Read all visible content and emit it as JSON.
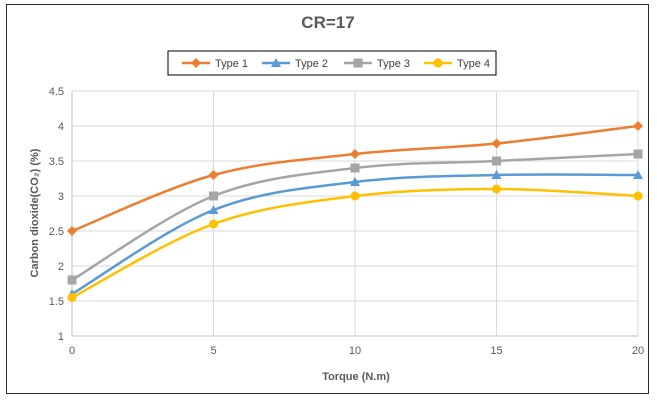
{
  "chart_data": {
    "type": "line",
    "title": "CR=17",
    "xlabel": "Torque (N.m)",
    "ylabel": "Carbon dioxide(CO₂) (%)",
    "x": [
      0,
      5,
      10,
      15,
      20
    ],
    "xticks": [
      "0",
      "5",
      "10",
      "15",
      "20"
    ],
    "yticks": [
      "1",
      "1.5",
      "2",
      "2.5",
      "3",
      "3.5",
      "4",
      "4.5"
    ],
    "xlim": [
      0,
      20
    ],
    "ylim": [
      1,
      4.5
    ],
    "grid": true,
    "legend_position": "top",
    "series": [
      {
        "name": "Type 1",
        "values": [
          2.5,
          3.3,
          3.6,
          3.75,
          4.0
        ],
        "color": "#ED7D31",
        "marker": "diamond"
      },
      {
        "name": "Type 2",
        "values": [
          1.6,
          2.8,
          3.2,
          3.3,
          3.3
        ],
        "color": "#5B9BD5",
        "marker": "triangle"
      },
      {
        "name": "Type 3",
        "values": [
          1.8,
          3.0,
          3.4,
          3.5,
          3.6
        ],
        "color": "#A5A5A5",
        "marker": "square"
      },
      {
        "name": "Type 4",
        "values": [
          1.55,
          2.6,
          3.0,
          3.1,
          3.0
        ],
        "color": "#FFC000",
        "marker": "circle"
      }
    ]
  }
}
